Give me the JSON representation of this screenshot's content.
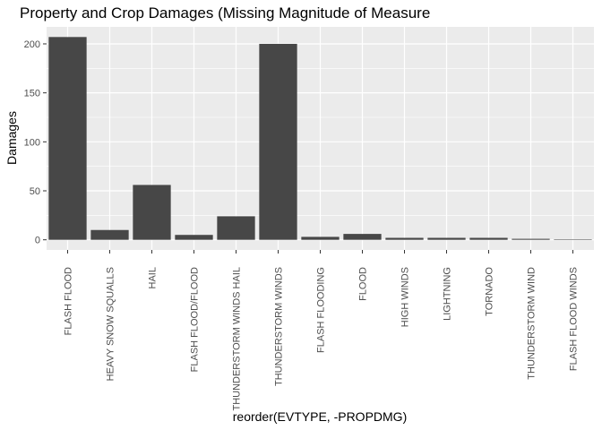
{
  "chart_data": {
    "type": "bar",
    "title": "Property and Crop Damages (Missing Magnitude of Measure",
    "xlabel": "reorder(EVTYPE, -PROPDMG)",
    "ylabel": "Damages",
    "categories": [
      "FLASH FLOOD",
      "HEAVY SNOW SQUALLS",
      "HAIL",
      "FLASH FLOOD/FLOOD",
      "THUNDERSTORM WINDS HAIL",
      "THUNDERSTORM WINDS",
      "FLASH FLOODING",
      "FLOOD",
      "HIGH WINDS",
      "LIGHTNING",
      "TORNADO",
      "THUNDERSTORM WIND",
      "FLASH FLOOD WINDS"
    ],
    "values": [
      207,
      10,
      56,
      5,
      24,
      200,
      3,
      6,
      2,
      2,
      2,
      1,
      0.5
    ],
    "yticks": [
      0,
      50,
      100,
      150,
      200
    ],
    "ylim": [
      -10.35,
      217.35
    ],
    "grid": true,
    "legend": "none",
    "colors": {
      "bar": "#474747",
      "panel": "#ebebeb",
      "grid_major": "#ffffff",
      "tick": "#333333"
    }
  }
}
